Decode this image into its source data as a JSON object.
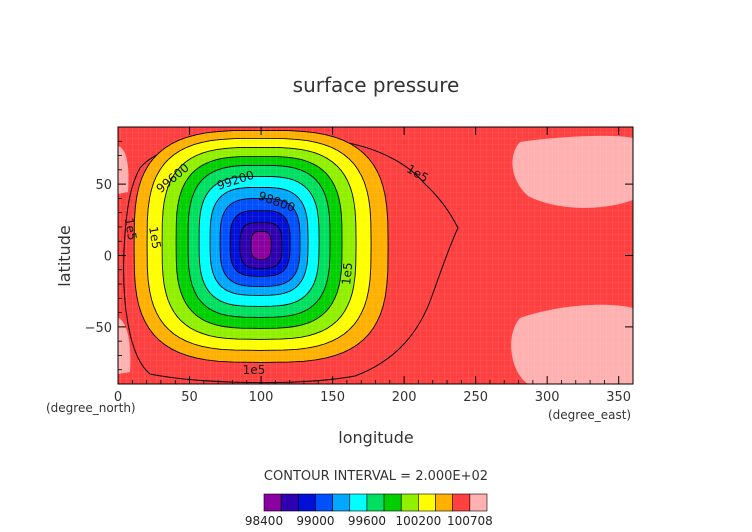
{
  "chart_data": {
    "type": "heatmap",
    "title": "surface pressure",
    "xlabel": "longitude",
    "ylabel": "latitude",
    "x_unit": "(degree_east)",
    "y_unit": "(degree_north)",
    "xlim": [
      0,
      360
    ],
    "ylim": [
      -90,
      90
    ],
    "x_ticks": [
      0,
      50,
      100,
      150,
      200,
      250,
      300,
      350
    ],
    "y_ticks": [
      -50,
      0,
      50
    ],
    "contour_interval_label": "CONTOUR INTERVAL = 2.000E+02",
    "low_center": {
      "lon": 100,
      "lat": 5,
      "value": 98400
    },
    "contour_labels": [
      {
        "text": "99600",
        "lon": 40,
        "lat": 52
      },
      {
        "text": "99200",
        "lon": 83,
        "lat": 50
      },
      {
        "text": "98800",
        "lon": 110,
        "lat": 35
      },
      {
        "text": "1e5",
        "lon": 208,
        "lat": 55
      },
      {
        "text": "1e5",
        "lon": 6,
        "lat": 18
      },
      {
        "text": "1e5",
        "lon": 23,
        "lat": 12
      },
      {
        "text": "1e5",
        "lon": 163,
        "lat": -13
      },
      {
        "text": "1e5",
        "lon": 95,
        "lat": -83
      }
    ],
    "colorbar": {
      "levels": [
        98400,
        98600,
        98800,
        99000,
        99200,
        99400,
        99600,
        99800,
        100000,
        100200,
        100400,
        100600,
        100708
      ],
      "colors": [
        "#8b00a0",
        "#2f00b0",
        "#0010d8",
        "#0050ff",
        "#00a8ff",
        "#00ffff",
        "#00e060",
        "#00d000",
        "#90f000",
        "#ffff00",
        "#ffb000",
        "#ff4040",
        "#ffb0b0"
      ],
      "tick_labels": [
        "98400",
        "99000",
        "99600",
        "100200",
        "100708"
      ]
    }
  }
}
